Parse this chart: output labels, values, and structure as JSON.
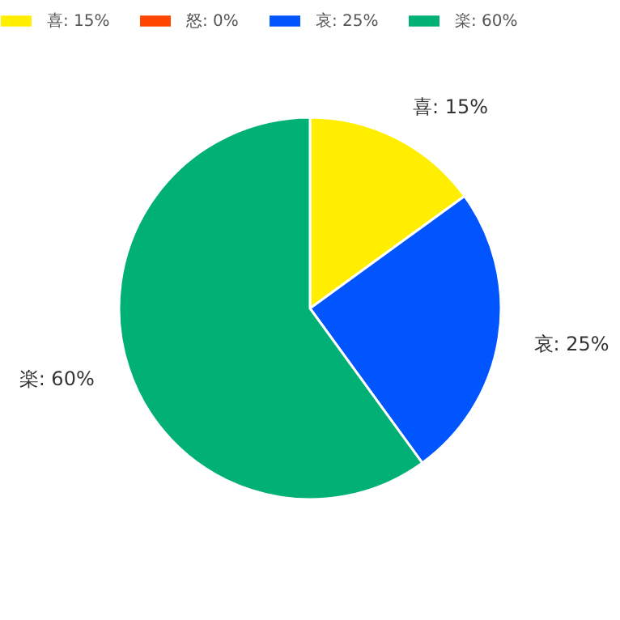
{
  "chart_data": {
    "type": "pie",
    "categories": [
      "喜: 15%",
      "怒: 0%",
      "哀: 25%",
      "楽: 60%"
    ],
    "values": [
      15,
      0,
      25,
      60
    ],
    "colors": [
      "#ffee00",
      "#ff4500",
      "#0055ff",
      "#00b074"
    ],
    "legend": "top"
  }
}
